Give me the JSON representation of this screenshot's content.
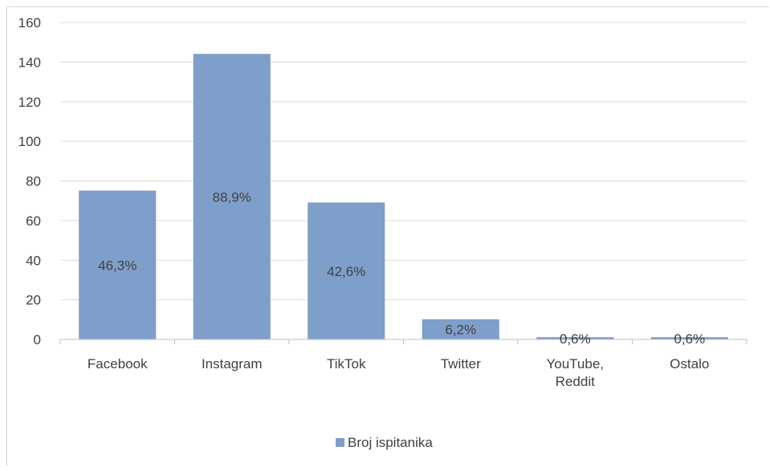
{
  "chart_data": {
    "type": "bar",
    "categories": [
      "Facebook",
      "Instagram",
      "TikTok",
      "Twitter",
      "YouTube, Reddit",
      "Ostalo"
    ],
    "category_lines": [
      [
        "Facebook"
      ],
      [
        "Instagram"
      ],
      [
        "TikTok"
      ],
      [
        "Twitter"
      ],
      [
        "YouTube,",
        "Reddit"
      ],
      [
        "Ostalo"
      ]
    ],
    "series": [
      {
        "name": "Broj ispitanika",
        "values": [
          75,
          144,
          69,
          10,
          1,
          1
        ],
        "data_labels": [
          "46,3%",
          "88,9%",
          "42,6%",
          "6,2%",
          "0,6%",
          "0,6%"
        ]
      }
    ],
    "ylim": [
      0,
      160
    ],
    "yticks": [
      0,
      20,
      40,
      60,
      80,
      100,
      120,
      140,
      160
    ],
    "grid": true,
    "legend": "bottom",
    "colors": {
      "bar": "#7f9fcb",
      "bar_stroke": "#6f8fbd",
      "grid": "#d9d9d9",
      "axis": "#bfbfbf",
      "text": "#404040"
    }
  }
}
